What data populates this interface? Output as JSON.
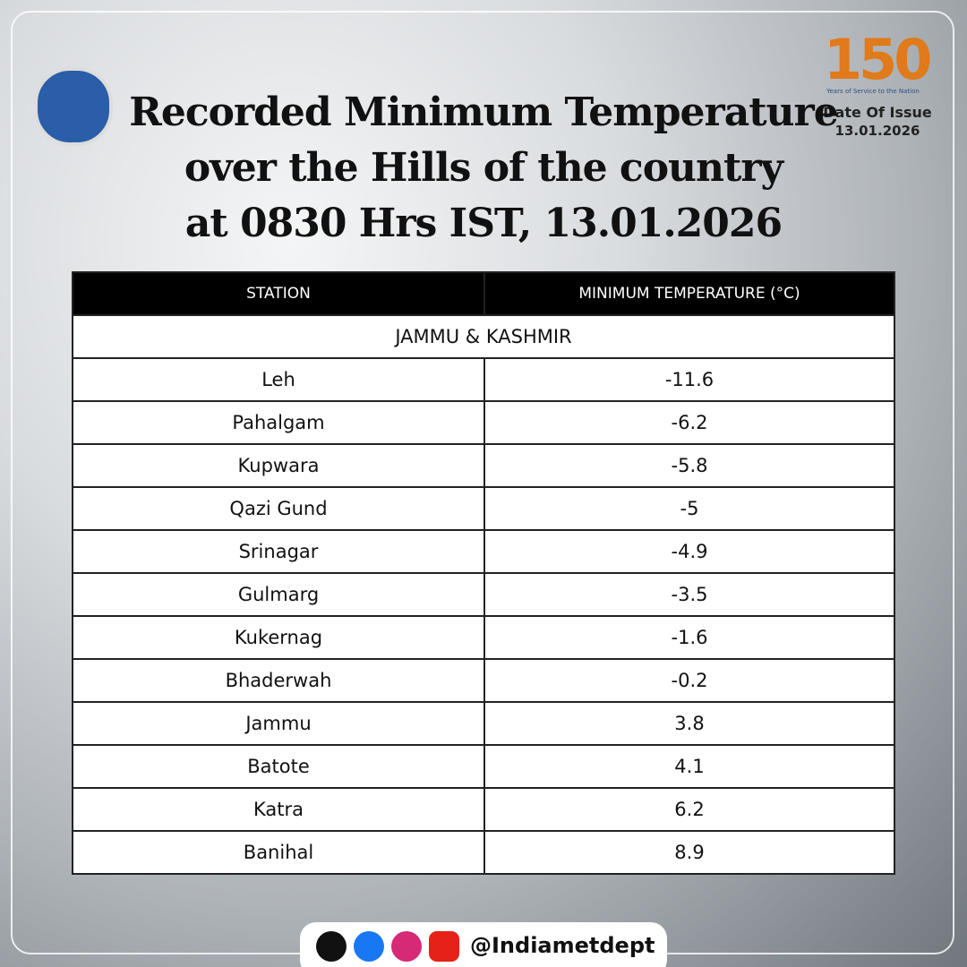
{
  "header": {
    "title_lines": [
      "Recorded Minimum Temperature",
      "over the Hills of the country",
      "at 0830 Hrs IST, 13.01.2026"
    ],
    "issue_label": "Date Of Issue",
    "issue_date": "13.01.2026",
    "logo_number": "150",
    "logo_tagline": "Years of Service to the Nation"
  },
  "table": {
    "columns": [
      "STATION",
      "MINIMUM TEMPERATURE (°C)"
    ],
    "region": "JAMMU & KASHMIR",
    "rows": [
      [
        "Leh",
        "-11.6"
      ],
      [
        "Pahalgam",
        "-6.2"
      ],
      [
        "Kupwara",
        "-5.8"
      ],
      [
        "Qazi Gund",
        "-5"
      ],
      [
        "Srinagar",
        "-4.9"
      ],
      [
        "Gulmarg",
        "-3.5"
      ],
      [
        "Kukernag",
        "-1.6"
      ],
      [
        "Bhaderwah",
        "-0.2"
      ],
      [
        "Jammu",
        "3.8"
      ],
      [
        "Batote",
        "4.1"
      ],
      [
        "Katra",
        "6.2"
      ],
      [
        "Banihal",
        "8.9"
      ]
    ]
  },
  "footer": {
    "handle": "@Indiametdept"
  }
}
